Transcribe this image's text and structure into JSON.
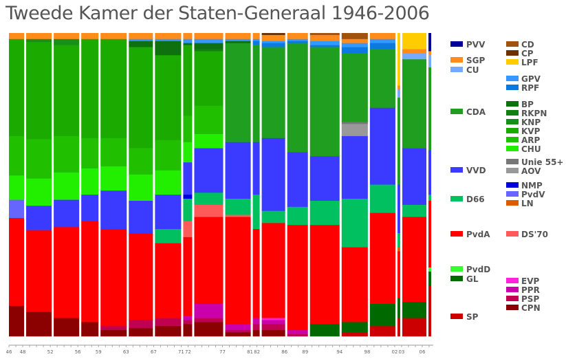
{
  "chart_data": {
    "type": "bar",
    "subtype": "stacked-proportional-marimekko",
    "title": "Tweede Kamer der Staten-Generaal 1946-2006",
    "x_tick_labels": [
      "46",
      "48",
      "52",
      "56",
      "59",
      "63",
      "67",
      "71",
      "72",
      "77",
      "81",
      "82",
      "86",
      "89",
      "94",
      "98",
      "02",
      "03",
      "06"
    ],
    "elections": [
      {
        "label": "46",
        "year": 1946.4,
        "seats": {
          "SGP": 2,
          "KVP": 32,
          "ARP": 13,
          "CHU": 8,
          "PvdV": 6,
          "PvdA": 29,
          "CPN": 10
        }
      },
      {
        "label": "48",
        "year": 1948.5,
        "seats": {
          "SGP": 2,
          "KNP": 1,
          "KVP": 32,
          "ARP": 13,
          "CHU": 9,
          "VVD": 8,
          "PvdA": 27,
          "CPN": 8
        }
      },
      {
        "label": "52",
        "year": 1952.5,
        "seats": {
          "SGP": 2,
          "KNP": 2,
          "KVP": 30,
          "ARP": 12,
          "CHU": 9,
          "VVD": 9,
          "PvdA": 30,
          "CPN": 6
        }
      },
      {
        "label": "56",
        "year": 1956.5,
        "seats": {
          "SGP": 3,
          "KVP": 49,
          "ARP": 15,
          "CHU": 13,
          "VVD": 13,
          "PvdA": 50,
          "CPN": 7
        }
      },
      {
        "label": "59",
        "year": 1959.3,
        "seats": {
          "SGP": 3,
          "KVP": 49,
          "ARP": 14,
          "CHU": 12,
          "VVD": 19,
          "PvdA": 48,
          "PSP": 2,
          "CPN": 3
        }
      },
      {
        "label": "63",
        "year": 1963.4,
        "seats": {
          "SGP": 3,
          "GPV": 1,
          "BP": 3,
          "KVP": 50,
          "ARP": 13,
          "CHU": 13,
          "VVD": 16,
          "PvdA": 43,
          "PSP": 4,
          "CPN": 4
        }
      },
      {
        "label": "67",
        "year": 1967.2,
        "seats": {
          "SGP": 3,
          "GPV": 1,
          "BP": 7,
          "KVP": 42,
          "ARP": 15,
          "CHU": 12,
          "VVD": 17,
          "D66": 7,
          "PvdA": 37,
          "PSP": 4,
          "CPN": 5
        }
      },
      {
        "label": "71",
        "year": 1971.3,
        "seats": {
          "SGP": 3,
          "GPV": 2,
          "BP": 1,
          "KVP": 35,
          "ARP": 13,
          "CHU": 10,
          "NMP": 2,
          "VVD": 16,
          "D66": 11,
          "DS'70": 8,
          "PvdA": 39,
          "PPR": 2,
          "PSP": 2,
          "CPN": 6
        }
      },
      {
        "label": "72",
        "year": 1972.9,
        "seats": {
          "SGP": 3,
          "GPV": 2,
          "BP": 3,
          "RKPN": 1,
          "KVP": 27,
          "ARP": 14,
          "CHU": 7,
          "VVD": 22,
          "D66": 6,
          "DS'70": 6,
          "PvdA": 43,
          "PPR": 7,
          "PSP": 2,
          "CPN": 7
        }
      },
      {
        "label": "77",
        "year": 1977.4,
        "seats": {
          "SGP": 3,
          "GPV": 1,
          "BP": 1,
          "CDA": 49,
          "VVD": 28,
          "D66": 8,
          "DS'70": 1,
          "PvdA": 53,
          "PPR": 3,
          "PSP": 1,
          "CPN": 2
        }
      },
      {
        "label": "81",
        "year": 1981.4,
        "seats": {
          "SGP": 3,
          "GPV": 1,
          "RPF": 2,
          "CDA": 48,
          "VVD": 26,
          "D66": 17,
          "PvdA": 44,
          "PPR": 3,
          "PSP": 3,
          "CPN": 3
        }
      },
      {
        "label": "82",
        "year": 1982.7,
        "seats": {
          "CP": 1,
          "SGP": 3,
          "GPV": 1,
          "RPF": 2,
          "CDA": 45,
          "VVD": 36,
          "D66": 6,
          "PvdA": 47,
          "EVP": 1,
          "PPR": 2,
          "PSP": 3,
          "CPN": 3
        }
      },
      {
        "label": "86",
        "year": 1986.4,
        "seats": {
          "SGP": 3,
          "GPV": 1,
          "RPF": 1,
          "CDA": 54,
          "VVD": 27,
          "D66": 9,
          "PvdA": 52,
          "PPR": 2,
          "PSP": 1
        }
      },
      {
        "label": "89",
        "year": 1989.7,
        "seats": {
          "CD": 1,
          "SGP": 3,
          "GPV": 2,
          "RPF": 1,
          "CDA": 54,
          "VVD": 22,
          "D66": 12,
          "PvdA": 49,
          "GL": 6
        }
      },
      {
        "label": "94",
        "year": 1994.3,
        "seats": {
          "CD": 3,
          "SGP": 2,
          "GPV": 2,
          "RPF": 3,
          "CDA": 34,
          "Unie 55+": 1,
          "AOV": 6,
          "VVD": 31,
          "D66": 24,
          "PvdA": 37,
          "GL": 5,
          "SP": 2
        }
      },
      {
        "label": "98",
        "year": 1998.4,
        "seats": {
          "SGP": 3,
          "GPV": 2,
          "RPF": 3,
          "CDA": 29,
          "VVD": 38,
          "D66": 14,
          "PvdA": 45,
          "GL": 11,
          "SP": 5
        }
      },
      {
        "label": "02",
        "year": 2002.4,
        "seats": {
          "LPF": 26,
          "SGP": 2,
          "CU": 4,
          "CDA": 43,
          "VVD": 24,
          "D66": 7,
          "LN": 2,
          "PvdA": 23,
          "GL": 10,
          "SP": 9
        }
      },
      {
        "label": "03",
        "year": 2003.1,
        "seats": {
          "LPF": 8,
          "SGP": 2,
          "CU": 3,
          "CDA": 44,
          "VVD": 28,
          "D66": 6,
          "PvdA": 42,
          "GL": 8,
          "SP": 9
        }
      },
      {
        "label": "06",
        "year": 2006.9,
        "seats": {
          "PVV": 9,
          "SGP": 2,
          "CU": 6,
          "CDA": 41,
          "VVD": 22,
          "D66": 3,
          "PvdA": 33,
          "PvdD": 2,
          "GL": 7,
          "SP": 25
        }
      }
    ],
    "x_range": [
      1946,
      2007.6
    ],
    "stack_order_top_to_bottom": [
      "PVV",
      "CD",
      "CP",
      "LPF",
      "SGP",
      "CU",
      "GPV",
      "RPF",
      "BP",
      "RKPN",
      "KNP",
      "CDA",
      "KVP",
      "ARP",
      "CHU",
      "Unie 55+",
      "AOV",
      "VVD",
      "NMP",
      "PvdV",
      "D66",
      "LN",
      "DS'70",
      "PvdA",
      "PvdD",
      "GL",
      "EVP",
      "PPR",
      "PSP",
      "CPN",
      "SP"
    ],
    "colors": {
      "PVV": "#000099",
      "SGP": "#ff8c1a",
      "CU": "#77aaff",
      "CDA": "#1f9e1f",
      "VVD": "#3b3bff",
      "D66": "#00c060",
      "PvdA": "#ff0000",
      "PvdD": "#33ff33",
      "GL": "#006a00",
      "SP": "#cc0000",
      "CD": "#a0520f",
      "CP": "#6b3300",
      "LPF": "#ffcc00",
      "GPV": "#3399ff",
      "RPF": "#0a7ae0",
      "BP": "#0e700e",
      "RKPN": "#127f12",
      "KNP": "#179017",
      "KVP": "#1bab00",
      "ARP": "#20c000",
      "CHU": "#22ee00",
      "Unie 55+": "#777777",
      "AOV": "#999999",
      "NMP": "#0000dd",
      "PvdV": "#6666ff",
      "LN": "#e05a00",
      "DS'70": "#ff5a5a",
      "EVP": "#ff22dd",
      "PPR": "#cc00aa",
      "PSP": "#c00050",
      "CPN": "#8b0000"
    },
    "legend_left": [
      {
        "party": "PVV",
        "group": 0
      },
      {
        "party": "SGP",
        "group": 1
      },
      {
        "party": "CU",
        "group": 1
      },
      {
        "party": "CDA",
        "group": 2
      },
      {
        "party": "VVD",
        "group": 3
      },
      {
        "party": "D66",
        "group": 4
      },
      {
        "party": "PvdA",
        "group": 5
      },
      {
        "party": "PvdD",
        "group": 6
      },
      {
        "party": "GL",
        "group": 6
      },
      {
        "party": "SP",
        "group": 7
      }
    ],
    "legend_right": [
      "CD",
      "CP",
      "LPF",
      "GPV",
      "RPF",
      "BP",
      "RKPN",
      "KNP",
      "KVP",
      "ARP",
      "CHU",
      "Unie 55+",
      "AOV",
      "NMP",
      "PvdV",
      "LN",
      "DS'70",
      "EVP",
      "PPR",
      "PSP",
      "CPN"
    ],
    "legend_placement": "right",
    "grid": false
  }
}
